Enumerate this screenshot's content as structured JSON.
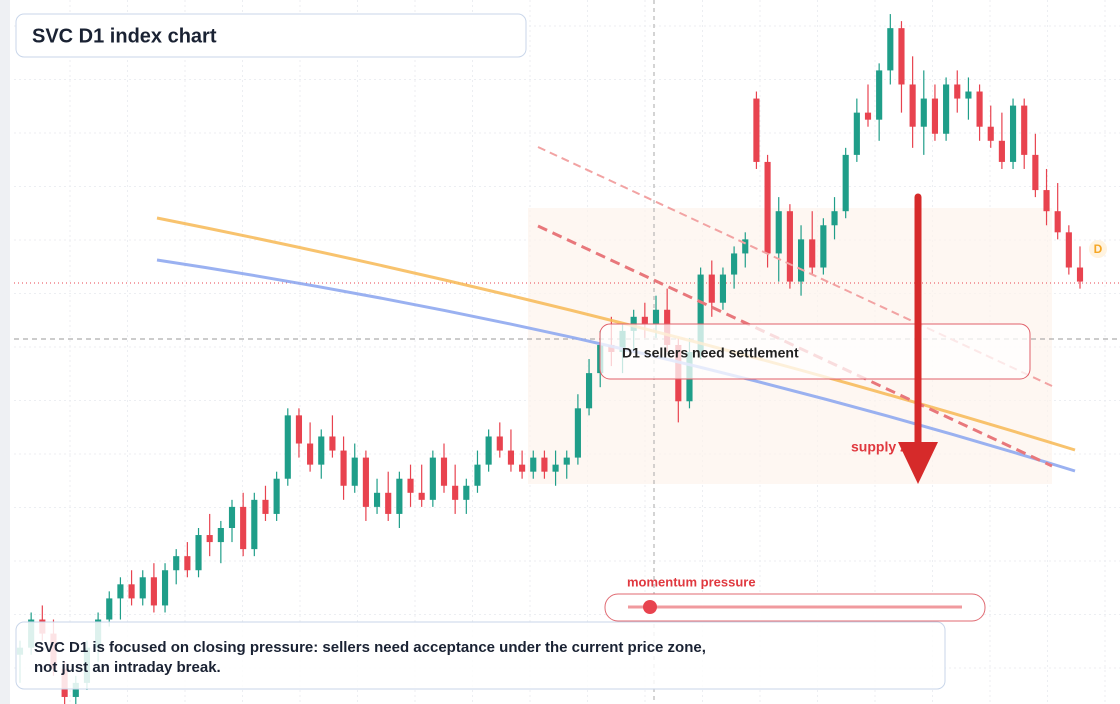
{
  "chart_data": {
    "type": "candlestick",
    "title": "SVC D1 index chart",
    "ylim": [
      0,
      100
    ],
    "up_color": "#1f9e89",
    "down_color": "#e8434f",
    "ohlc": [
      [
        7,
        9,
        3,
        8
      ],
      [
        8,
        13,
        7,
        12
      ],
      [
        12,
        14,
        9,
        10
      ],
      [
        10,
        12,
        4,
        5
      ],
      [
        5,
        6,
        0,
        1
      ],
      [
        1,
        4,
        0,
        3
      ],
      [
        3,
        9,
        2,
        8
      ],
      [
        8,
        13,
        6,
        12
      ],
      [
        12,
        16,
        11,
        15
      ],
      [
        15,
        18,
        12,
        17
      ],
      [
        17,
        19,
        14,
        15
      ],
      [
        15,
        19,
        14,
        18
      ],
      [
        18,
        20,
        13,
        14
      ],
      [
        14,
        20,
        13,
        19
      ],
      [
        19,
        22,
        17,
        21
      ],
      [
        21,
        23,
        18,
        19
      ],
      [
        19,
        25,
        18,
        24
      ],
      [
        24,
        27,
        21,
        23
      ],
      [
        23,
        26,
        20,
        25
      ],
      [
        25,
        29,
        23,
        28
      ],
      [
        28,
        30,
        21,
        22
      ],
      [
        22,
        30,
        21,
        29
      ],
      [
        29,
        31,
        26,
        27
      ],
      [
        27,
        33,
        26,
        32
      ],
      [
        32,
        42,
        31,
        41
      ],
      [
        41,
        42,
        35,
        37
      ],
      [
        37,
        40,
        33,
        34
      ],
      [
        34,
        39,
        32,
        38
      ],
      [
        38,
        41,
        35,
        36
      ],
      [
        36,
        38,
        29,
        31
      ],
      [
        31,
        37,
        30,
        35
      ],
      [
        35,
        36,
        26,
        28
      ],
      [
        28,
        32,
        27,
        30
      ],
      [
        30,
        33,
        26,
        27
      ],
      [
        27,
        33,
        25,
        32
      ],
      [
        32,
        34,
        28,
        30
      ],
      [
        30,
        34,
        28,
        29
      ],
      [
        29,
        36,
        28,
        35
      ],
      [
        35,
        37,
        30,
        31
      ],
      [
        31,
        34,
        27,
        29
      ],
      [
        29,
        32,
        27,
        31
      ],
      [
        31,
        36,
        30,
        34
      ],
      [
        34,
        39,
        33,
        38
      ],
      [
        38,
        40,
        35,
        36
      ],
      [
        36,
        39,
        33,
        34
      ],
      [
        34,
        36,
        32,
        33
      ],
      [
        33,
        36,
        32,
        35
      ],
      [
        35,
        36,
        32,
        33
      ],
      [
        33,
        36,
        31,
        34
      ],
      [
        34,
        36,
        32,
        35
      ],
      [
        35,
        44,
        34,
        42
      ],
      [
        42,
        49,
        41,
        47
      ],
      [
        47,
        53,
        45,
        51
      ],
      [
        51,
        55,
        48,
        50
      ],
      [
        50,
        54,
        47,
        53
      ],
      [
        53,
        56,
        50,
        55
      ],
      [
        55,
        57,
        52,
        54
      ],
      [
        54,
        58,
        52,
        56
      ],
      [
        56,
        59,
        50,
        51
      ],
      [
        51,
        52,
        40,
        43
      ],
      [
        43,
        52,
        42,
        50
      ],
      [
        50,
        62,
        49,
        61
      ],
      [
        61,
        63,
        55,
        57
      ],
      [
        57,
        62,
        56,
        61
      ],
      [
        61,
        65,
        59,
        64
      ],
      [
        64,
        67,
        62,
        66
      ],
      [
        86,
        87,
        76,
        77
      ],
      [
        77,
        78,
        62,
        64
      ],
      [
        64,
        72,
        60,
        70
      ],
      [
        70,
        71,
        59,
        60
      ],
      [
        60,
        68,
        58,
        66
      ],
      [
        66,
        70,
        61,
        62
      ],
      [
        62,
        69,
        61,
        68
      ],
      [
        68,
        72,
        66,
        70
      ],
      [
        70,
        79,
        69,
        78
      ],
      [
        78,
        86,
        77,
        84
      ],
      [
        84,
        88,
        82,
        83
      ],
      [
        83,
        91,
        80,
        90
      ],
      [
        90,
        98,
        88,
        96
      ],
      [
        96,
        97,
        84,
        88
      ],
      [
        88,
        92,
        79,
        82
      ],
      [
        82,
        90,
        78,
        86
      ],
      [
        86,
        88,
        80,
        81
      ],
      [
        81,
        89,
        80,
        88
      ],
      [
        88,
        90,
        84,
        86
      ],
      [
        86,
        89,
        83,
        87
      ],
      [
        87,
        88,
        80,
        82
      ],
      [
        82,
        85,
        79,
        80
      ],
      [
        80,
        84,
        76,
        77
      ],
      [
        77,
        86,
        76,
        85
      ],
      [
        85,
        86,
        76,
        78
      ],
      [
        78,
        81,
        72,
        73
      ],
      [
        73,
        76,
        68,
        70
      ],
      [
        70,
        74,
        66,
        67
      ],
      [
        67,
        68,
        61,
        62
      ],
      [
        62,
        65,
        59,
        60
      ]
    ],
    "annotations": {
      "callout": "D1 sellers need settlement",
      "zone": "supply zone",
      "marker": "D",
      "slider": "momentum pressure"
    },
    "note_lines": [
      "SVC D1 is focused on closing pressure: sellers need acceptance under the current price zone,",
      "not just an intraday break."
    ]
  }
}
